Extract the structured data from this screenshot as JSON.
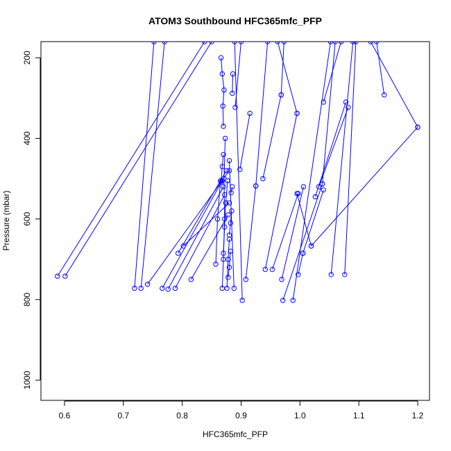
{
  "chart_data": {
    "type": "line",
    "title": "ATOM3 Southbound HFC365mfc_PFP",
    "xlabel": "HFC365mfc_PFP",
    "ylabel": "Pressure (mbar)",
    "xlim": [
      0.56,
      1.22
    ],
    "ylim": [
      1050,
      160
    ],
    "y_reversed": true,
    "x_ticks": [
      0.6,
      0.7,
      0.8,
      0.9,
      1.0,
      1.1,
      1.2
    ],
    "x_tick_labels": [
      "0.6",
      "0.7",
      "0.8",
      "0.9",
      "1.0",
      "1.1",
      "1.2"
    ],
    "y_ticks": [
      200,
      400,
      600,
      800,
      1000
    ],
    "y_tick_labels": [
      "200",
      "400",
      "600",
      "800",
      "1000"
    ],
    "grid": false,
    "series_color": "#0000ff",
    "marker": "open-circle",
    "series": [
      {
        "x": [
          0.868,
          0.87,
          0.872,
          0.871,
          0.873
        ],
        "y": [
          772,
          700,
          600,
          500,
          400
        ]
      },
      {
        "x": [
          0.87,
          0.869,
          0.871,
          0.868,
          0.866
        ],
        "y": [
          370,
          320,
          280,
          240,
          200
        ]
      },
      {
        "x": [
          0.588,
          0.838
        ],
        "y": [
          742,
          160
        ]
      },
      {
        "x": [
          0.601,
          0.85
        ],
        "y": [
          742,
          160
        ]
      },
      {
        "x": [
          0.719,
          0.752
        ],
        "y": [
          772,
          160
        ]
      },
      {
        "x": [
          0.73,
          0.77
        ],
        "y": [
          772,
          160
        ]
      },
      {
        "x": [
          0.741,
          0.88
        ],
        "y": [
          762,
          480
        ]
      },
      {
        "x": [
          0.766,
          0.868
        ],
        "y": [
          772,
          505
        ]
      },
      {
        "x": [
          0.776,
          0.87
        ],
        "y": [
          774,
          520
        ]
      },
      {
        "x": [
          0.788,
          0.872
        ],
        "y": [
          772,
          540
        ]
      },
      {
        "x": [
          0.793,
          0.875
        ],
        "y": [
          685,
          480
        ]
      },
      {
        "x": [
          0.802,
          0.88
        ],
        "y": [
          667,
          560
        ]
      },
      {
        "x": [
          0.815,
          0.878
        ],
        "y": [
          750,
          590
        ]
      },
      {
        "x": [
          0.857,
          0.86,
          0.865
        ],
        "y": [
          712,
          600,
          505
        ]
      },
      {
        "x": [
          0.866,
          0.868,
          0.87
        ],
        "y": [
          508,
          470,
          440
        ]
      },
      {
        "x": [
          0.87,
          0.872,
          0.874,
          0.877
        ],
        "y": [
          685,
          620,
          560,
          505
        ]
      },
      {
        "x": [
          0.876,
          0.878,
          0.88
        ],
        "y": [
          772,
          700,
          650
        ]
      },
      {
        "x": [
          0.878,
          0.88,
          0.882
        ],
        "y": [
          745,
          720,
          680
        ]
      },
      {
        "x": [
          0.88,
          0.882,
          0.884
        ],
        "y": [
          640,
          610,
          580
        ]
      },
      {
        "x": [
          0.883,
          0.885
        ],
        "y": [
          535,
          520
        ]
      },
      {
        "x": [
          0.888,
          0.88
        ],
        "y": [
          772,
          455
        ]
      },
      {
        "x": [
          0.89,
          0.9
        ],
        "y": [
          323,
          160
        ]
      },
      {
        "x": [
          0.885,
          0.886
        ],
        "y": [
          288,
          240
        ]
      },
      {
        "x": [
          0.898,
          0.915
        ],
        "y": [
          477,
          338
        ]
      },
      {
        "x": [
          0.902,
          0.889
        ],
        "y": [
          802,
          160
        ]
      },
      {
        "x": [
          0.908,
          0.925
        ],
        "y": [
          750,
          518
        ]
      },
      {
        "x": [
          0.925,
          0.945
        ],
        "y": [
          518,
          160
        ]
      },
      {
        "x": [
          0.937,
          0.968
        ],
        "y": [
          500,
          292
        ]
      },
      {
        "x": [
          0.941,
          0.995
        ],
        "y": [
          725,
          338
        ]
      },
      {
        "x": [
          0.953,
          0.997
        ],
        "y": [
          725,
          537
        ]
      },
      {
        "x": [
          0.968,
          0.973
        ],
        "y": [
          292,
          160
        ]
      },
      {
        "x": [
          0.969,
          1.006
        ],
        "y": [
          750,
          520
        ]
      },
      {
        "x": [
          0.971,
          1.038
        ],
        "y": [
          802,
          513
        ]
      },
      {
        "x": [
          0.988,
          1.052
        ],
        "y": [
          802,
          160
        ]
      },
      {
        "x": [
          0.995,
          1.019
        ],
        "y": [
          537,
          667
        ]
      },
      {
        "x": [
          0.997,
          1.005
        ],
        "y": [
          738,
          685
        ]
      },
      {
        "x": [
          1.005,
          1.04
        ],
        "y": [
          685,
          528
        ]
      },
      {
        "x": [
          1.019,
          1.2
        ],
        "y": [
          667,
          372
        ]
      },
      {
        "x": [
          1.026,
          1.078
        ],
        "y": [
          545,
          310
        ]
      },
      {
        "x": [
          1.032,
          1.082
        ],
        "y": [
          520,
          323
        ]
      },
      {
        "x": [
          1.038,
          1.06
        ],
        "y": [
          513,
          160
        ]
      },
      {
        "x": [
          1.04,
          1.07
        ],
        "y": [
          310,
          160
        ]
      },
      {
        "x": [
          1.053,
          1.09
        ],
        "y": [
          738,
          160
        ]
      },
      {
        "x": [
          1.076,
          1.095
        ],
        "y": [
          738,
          160
        ]
      },
      {
        "x": [
          1.143,
          1.13
        ],
        "y": [
          292,
          160
        ]
      },
      {
        "x": [
          1.2,
          1.12
        ],
        "y": [
          372,
          160
        ]
      },
      {
        "x": [
          0.962,
          0.995
        ],
        "y": [
          160,
          338
        ]
      }
    ]
  }
}
